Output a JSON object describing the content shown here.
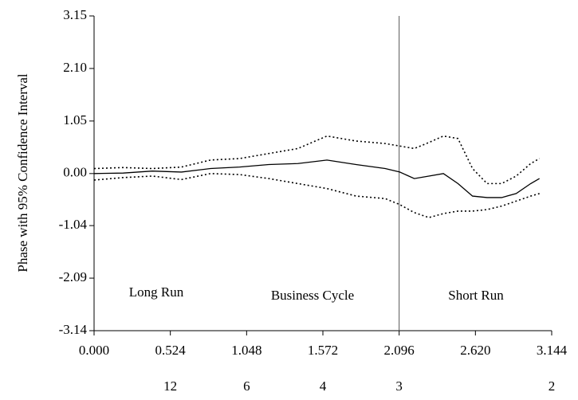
{
  "chart_data": {
    "type": "line",
    "ylabel": "Phase with 95% Confidence Interval",
    "x": [
      0,
      0.2,
      0.4,
      0.6,
      0.8,
      1.0,
      1.2,
      1.4,
      1.6,
      1.8,
      2.0,
      2.1,
      2.2,
      2.3,
      2.4,
      2.5,
      2.6,
      2.7,
      2.8,
      2.9,
      3.0,
      3.06
    ],
    "series": [
      {
        "color": "#000000",
        "dash": "none",
        "values": [
          0,
          0.01,
          0.05,
          0.03,
          0.1,
          0.13,
          0.18,
          0.2,
          0.27,
          0.18,
          0.1,
          0.03,
          -0.1,
          -0.05,
          0.0,
          -0.2,
          -0.45,
          -0.48,
          -0.48,
          -0.4,
          -0.2,
          -0.1
        ]
      },
      {
        "color": "#000000",
        "dash": "2,3",
        "values": [
          0.1,
          0.12,
          0.1,
          0.13,
          0.27,
          0.3,
          0.4,
          0.5,
          0.75,
          0.65,
          0.6,
          0.55,
          0.5,
          0.62,
          0.75,
          0.7,
          0.1,
          -0.2,
          -0.2,
          -0.05,
          0.2,
          0.3
        ]
      },
      {
        "color": "#000000",
        "dash": "2,3",
        "values": [
          -0.13,
          -0.08,
          -0.05,
          -0.12,
          0.0,
          -0.02,
          -0.1,
          -0.2,
          -0.3,
          -0.45,
          -0.5,
          -0.62,
          -0.78,
          -0.88,
          -0.8,
          -0.75,
          -0.75,
          -0.72,
          -0.65,
          -0.55,
          -0.45,
          -0.4
        ]
      }
    ],
    "xlim": [
      0,
      3.144
    ],
    "ylim": [
      -3.14,
      3.15
    ],
    "xticks": [
      {
        "value": 0,
        "label": "0.000"
      },
      0.524,
      1.048,
      1.572,
      2.096,
      {
        "value": 2.62,
        "label": "2.620"
      },
      3.144
    ],
    "x2ticks": [
      {
        "value": 0.524,
        "label": "12"
      },
      {
        "value": 1.048,
        "label": "6"
      },
      {
        "value": 1.572,
        "label": "4"
      },
      {
        "value": 2.096,
        "label": "3"
      },
      {
        "value": 3.144,
        "label": "2"
      }
    ],
    "yticks": [
      3.15,
      {
        "value": 2.1,
        "label": "2.10"
      },
      1.05,
      {
        "value": 0,
        "label": "0.00"
      },
      -1.04,
      -2.09,
      -3.14
    ],
    "vlines": [
      2.096
    ],
    "annotations": [
      "Long Run",
      "Business Cycle",
      "Short Run"
    ],
    "grid": false
  }
}
